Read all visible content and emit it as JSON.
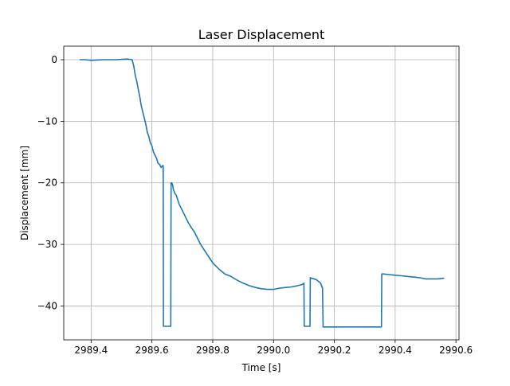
{
  "chart_data": {
    "type": "line",
    "title": "Laser Displacement",
    "xlabel": "Time [s]",
    "ylabel": "Displacement [mm]",
    "xlim": [
      2989.31,
      2990.61
    ],
    "ylim": [
      -45.5,
      2.2
    ],
    "xticks": [
      2989.4,
      2989.6,
      2989.8,
      2990.0,
      2990.2,
      2990.4,
      2990.6
    ],
    "xtick_labels": [
      "2989.4",
      "2989.6",
      "2989.8",
      "2990.0",
      "2990.2",
      "2990.4",
      "2990.6"
    ],
    "yticks": [
      0,
      -10,
      -20,
      -30,
      -40
    ],
    "ytick_labels": [
      "0",
      "−10",
      "−20",
      "−30",
      "−40"
    ],
    "grid": true,
    "color": "#1f77b4",
    "series": [
      {
        "x": [
          2989.364,
          2989.38,
          2989.4,
          2989.42,
          2989.44,
          2989.46,
          2989.48,
          2989.5,
          2989.52,
          2989.535,
          2989.54,
          2989.545,
          2989.55,
          2989.555,
          2989.56,
          2989.565,
          2989.57,
          2989.575,
          2989.58,
          2989.585,
          2989.59,
          2989.595,
          2989.6,
          2989.605,
          2989.61,
          2989.615,
          2989.62,
          2989.625,
          2989.63,
          2989.635,
          2989.637,
          2989.638,
          2989.64,
          2989.65,
          2989.66,
          2989.662,
          2989.663,
          2989.665,
          2989.668,
          2989.67,
          2989.675,
          2989.68,
          2989.685,
          2989.69,
          2989.7,
          2989.71,
          2989.72,
          2989.73,
          2989.74,
          2989.75,
          2989.76,
          2989.78,
          2989.8,
          2989.82,
          2989.84,
          2989.86,
          2989.88,
          2989.9,
          2989.92,
          2989.94,
          2989.96,
          2989.98,
          2990.0,
          2990.02,
          2990.04,
          2990.06,
          2990.08,
          2990.095,
          2990.1,
          2990.101,
          2990.105,
          2990.115,
          2990.12,
          2990.121,
          2990.125,
          2990.14,
          2990.155,
          2990.16,
          2990.161,
          2990.163,
          2990.17,
          2990.18,
          2990.2,
          2990.22,
          2990.24,
          2990.26,
          2990.28,
          2990.3,
          2990.32,
          2990.34,
          2990.355,
          2990.356,
          2990.36,
          2990.38,
          2990.4,
          2990.42,
          2990.44,
          2990.46,
          2990.48,
          2990.5,
          2990.52,
          2990.54,
          2990.56
        ],
        "y": [
          0.0,
          0.0,
          -0.1,
          -0.05,
          0.0,
          0.0,
          0.0,
          0.05,
          0.1,
          0.0,
          -1.0,
          -2.5,
          -3.5,
          -4.8,
          -6.0,
          -7.5,
          -8.5,
          -9.5,
          -10.5,
          -11.8,
          -12.5,
          -13.5,
          -14.0,
          -15.0,
          -15.5,
          -16.0,
          -16.8,
          -17.0,
          -17.5,
          -17.2,
          -17.2,
          -43.3,
          -43.3,
          -43.3,
          -43.3,
          -43.3,
          -20.0,
          -20.0,
          -20.3,
          -21.0,
          -21.7,
          -22.0,
          -22.8,
          -23.5,
          -24.5,
          -25.5,
          -26.5,
          -27.3,
          -28.0,
          -29.0,
          -30.0,
          -31.5,
          -33.0,
          -34.0,
          -34.8,
          -35.2,
          -35.8,
          -36.3,
          -36.7,
          -37.0,
          -37.2,
          -37.3,
          -37.3,
          -37.1,
          -37.0,
          -36.9,
          -36.7,
          -36.5,
          -36.3,
          -43.3,
          -43.3,
          -43.3,
          -43.3,
          -35.4,
          -35.5,
          -35.7,
          -36.3,
          -37.0,
          -37.0,
          -43.4,
          -43.4,
          -43.4,
          -43.4,
          -43.4,
          -43.4,
          -43.4,
          -43.4,
          -43.4,
          -43.4,
          -43.4,
          -43.4,
          -34.8,
          -34.8,
          -34.9,
          -35.0,
          -35.1,
          -35.2,
          -35.3,
          -35.4,
          -35.6,
          -35.6,
          -35.6,
          -35.5
        ]
      }
    ]
  }
}
